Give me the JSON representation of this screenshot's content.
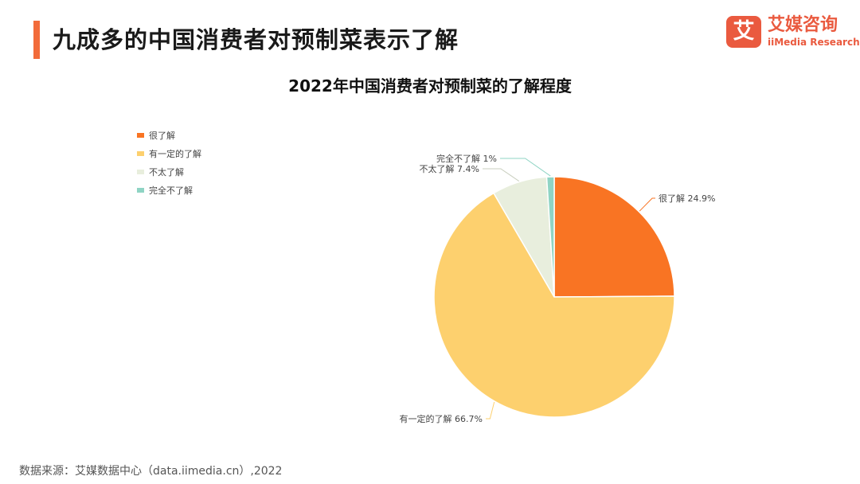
{
  "header": {
    "title": "九成多的中国消费者对预制菜表示了解",
    "accent_color": "#f26b3a"
  },
  "logo": {
    "mark": "艾",
    "name_cn": "艾媒咨询",
    "name_en": "iiMedia Research",
    "color": "#ea5a3f"
  },
  "chart_data": {
    "type": "pie",
    "title": "2022年中国消费者对预制菜的了解程度",
    "legend_position": "top-left",
    "start": "12 o'clock, clockwise",
    "slices": [
      {
        "label": "很了解",
        "value": 24.9,
        "display": "24.9%",
        "color": "#f97423"
      },
      {
        "label": "有一定的了解",
        "value": 66.7,
        "display": "66.7%",
        "color": "#fdd06e"
      },
      {
        "label": "不太了解",
        "value": 7.4,
        "display": "7.4%",
        "color": "#e8eedd"
      },
      {
        "label": "完全不了解",
        "value": 1,
        "display": "1%",
        "color": "#8fd4c4"
      }
    ]
  },
  "footer": {
    "source": "数据来源：艾媒数据中心（data.iimedia.cn）,2022"
  }
}
